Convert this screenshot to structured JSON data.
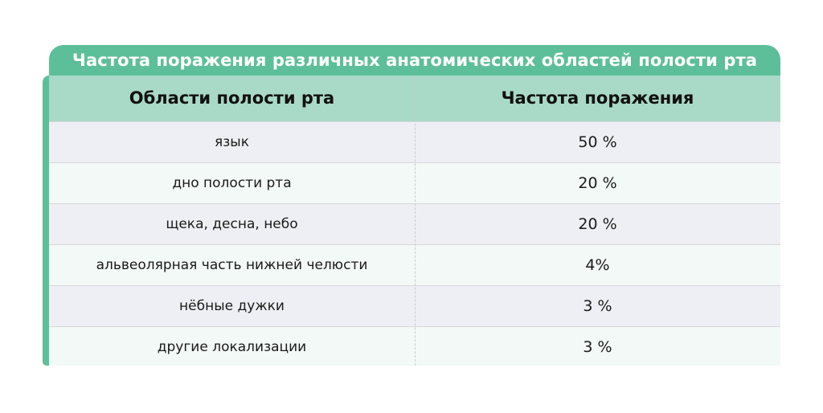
{
  "title": "Частота поражения различных анатомических областей полости рта",
  "table": {
    "headers": [
      "Области полости рта",
      "Частота поражения"
    ],
    "rows": [
      {
        "area": "язык",
        "frequency": "50 %"
      },
      {
        "area": "дно полости рта",
        "frequency": "20 %"
      },
      {
        "area": "щека, десна, небо",
        "frequency": "20 %"
      },
      {
        "area": "альвеолярная часть нижней челюсти",
        "frequency": "4%"
      },
      {
        "area": "нёбные дужки",
        "frequency": "3 %"
      },
      {
        "area": "другие локализации",
        "frequency": "3 %"
      }
    ]
  },
  "colors": {
    "accent": "#5dbf99",
    "header_bg": "#a9d9c7",
    "row_odd": "#eeeff4",
    "row_even": "#f2f9f6"
  }
}
